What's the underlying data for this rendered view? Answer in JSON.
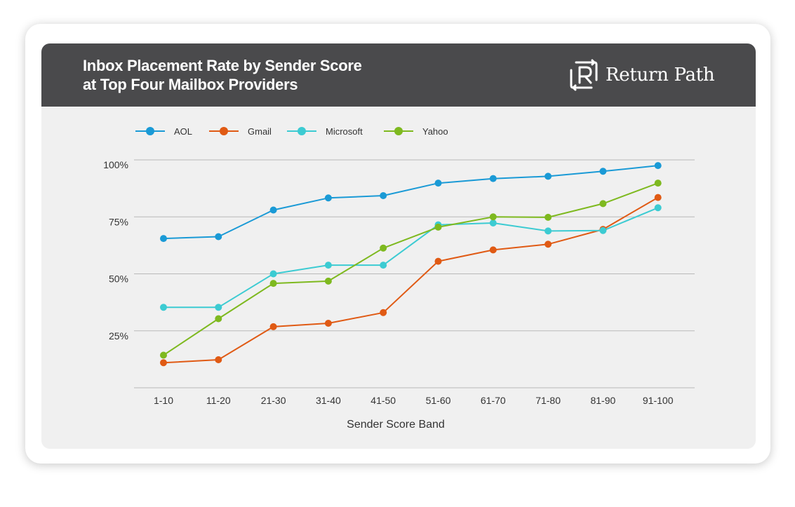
{
  "brand": {
    "name": "Return Path",
    "logo_icon": "return-path-logo-icon"
  },
  "colors": {
    "header": "#4a4a4c",
    "panel": "#f0f0f0",
    "gridline": "#b9b9b9",
    "AOL": "#1a9ad6",
    "Gmail": "#e05a14",
    "Microsoft": "#3ccbd2",
    "Yahoo": "#7eb91f"
  },
  "chart_data": {
    "type": "line",
    "title": [
      "Inbox Placement Rate by Sender Score",
      "at Top Four Mailbox Providers"
    ],
    "xlabel": "Sender Score Band",
    "ylabel": "",
    "categories": [
      "1-10",
      "11-20",
      "21-30",
      "31-40",
      "41-50",
      "51-60",
      "61-70",
      "71-80",
      "81-90",
      "91-100"
    ],
    "y_ticks": [
      {
        "value": 100,
        "label": "100%"
      },
      {
        "value": 75,
        "label": "75%"
      },
      {
        "value": 50,
        "label": "50%"
      },
      {
        "value": 25,
        "label": "25%"
      }
    ],
    "ylim": [
      0,
      100
    ],
    "grid": true,
    "legend_position": "top-left",
    "series": [
      {
        "name": "AOL",
        "color": "#1a9ad6",
        "values": [
          65.5,
          66.3,
          78.0,
          83.3,
          84.3,
          89.8,
          91.8,
          92.8,
          95.0,
          97.5
        ]
      },
      {
        "name": "Gmail",
        "color": "#e05a14",
        "values": [
          11.0,
          12.3,
          26.8,
          28.3,
          33.0,
          55.5,
          60.5,
          63.0,
          69.5,
          83.5
        ]
      },
      {
        "name": "Microsoft",
        "color": "#3ccbd2",
        "values": [
          35.3,
          35.3,
          50.0,
          53.8,
          53.8,
          71.5,
          72.3,
          68.8,
          69.0,
          79.0
        ]
      },
      {
        "name": "Yahoo",
        "color": "#7eb91f",
        "values": [
          14.3,
          30.3,
          45.8,
          46.8,
          61.3,
          70.5,
          75.0,
          74.8,
          80.8,
          89.8
        ]
      }
    ]
  }
}
